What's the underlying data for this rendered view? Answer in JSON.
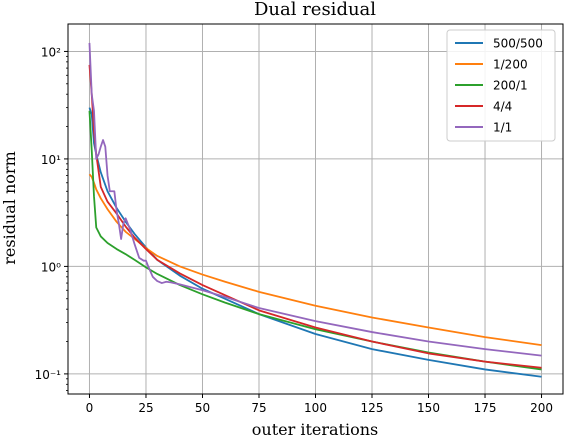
{
  "chart_data": {
    "type": "line",
    "title": "Dual residual",
    "xlabel": "outer iterations",
    "ylabel": "residual norm",
    "xlim": [
      -9.5,
      209.5
    ],
    "ylim": [
      0.065,
      180
    ],
    "yscale": "log",
    "grid": true,
    "legend_position": "top-right",
    "xticks": [
      0,
      25,
      50,
      75,
      100,
      125,
      150,
      175,
      200
    ],
    "yticks": [
      {
        "value": 100,
        "label": "10²"
      },
      {
        "value": 10,
        "label": "10¹"
      },
      {
        "value": 1,
        "label": "10⁰"
      },
      {
        "value": 0.1,
        "label": "10⁻¹"
      }
    ],
    "series": [
      {
        "name": "500/500",
        "color": "#1f77b4",
        "points": [
          [
            0,
            30
          ],
          [
            1,
            26
          ],
          [
            2,
            14
          ],
          [
            3,
            11
          ],
          [
            5,
            7.5
          ],
          [
            8,
            5
          ],
          [
            12,
            3.5
          ],
          [
            16,
            2.6
          ],
          [
            20,
            2
          ],
          [
            25,
            1.5
          ],
          [
            30,
            1.15
          ],
          [
            40,
            0.82
          ],
          [
            50,
            0.62
          ],
          [
            60,
            0.5
          ],
          [
            75,
            0.36
          ],
          [
            100,
            0.235
          ],
          [
            125,
            0.17
          ],
          [
            150,
            0.135
          ],
          [
            175,
            0.11
          ],
          [
            200,
            0.094
          ]
        ]
      },
      {
        "name": "1/200",
        "color": "#ff7f0e",
        "points": [
          [
            0,
            7.2
          ],
          [
            1,
            6.8
          ],
          [
            2,
            6
          ],
          [
            3,
            5.2
          ],
          [
            5,
            4.3
          ],
          [
            8,
            3.4
          ],
          [
            12,
            2.6
          ],
          [
            16,
            2.1
          ],
          [
            20,
            1.8
          ],
          [
            25,
            1.48
          ],
          [
            30,
            1.25
          ],
          [
            40,
            1.0
          ],
          [
            50,
            0.84
          ],
          [
            60,
            0.72
          ],
          [
            75,
            0.58
          ],
          [
            100,
            0.43
          ],
          [
            125,
            0.335
          ],
          [
            150,
            0.27
          ],
          [
            175,
            0.22
          ],
          [
            200,
            0.185
          ]
        ]
      },
      {
        "name": "200/1",
        "color": "#2ca02c",
        "points": [
          [
            0,
            28
          ],
          [
            1,
            12
          ],
          [
            2,
            4.5
          ],
          [
            3,
            2.3
          ],
          [
            5,
            1.9
          ],
          [
            8,
            1.65
          ],
          [
            12,
            1.45
          ],
          [
            16,
            1.3
          ],
          [
            20,
            1.15
          ],
          [
            25,
            0.98
          ],
          [
            30,
            0.85
          ],
          [
            40,
            0.67
          ],
          [
            50,
            0.55
          ],
          [
            60,
            0.46
          ],
          [
            75,
            0.36
          ],
          [
            100,
            0.26
          ],
          [
            125,
            0.2
          ],
          [
            150,
            0.158
          ],
          [
            175,
            0.13
          ],
          [
            200,
            0.11
          ]
        ]
      },
      {
        "name": "4/4",
        "color": "#d62728",
        "points": [
          [
            0,
            75
          ],
          [
            1,
            40
          ],
          [
            2,
            18
          ],
          [
            3,
            11
          ],
          [
            5,
            5.5
          ],
          [
            8,
            4
          ],
          [
            12,
            3.1
          ],
          [
            16,
            2.35
          ],
          [
            20,
            1.85
          ],
          [
            25,
            1.45
          ],
          [
            30,
            1.15
          ],
          [
            40,
            0.86
          ],
          [
            50,
            0.67
          ],
          [
            60,
            0.54
          ],
          [
            75,
            0.39
          ],
          [
            100,
            0.27
          ],
          [
            125,
            0.2
          ],
          [
            150,
            0.155
          ],
          [
            175,
            0.13
          ],
          [
            200,
            0.114
          ]
        ]
      },
      {
        "name": "1/1",
        "color": "#9467bd",
        "points": [
          [
            0,
            120
          ],
          [
            1,
            40
          ],
          [
            2,
            28
          ],
          [
            3,
            10
          ],
          [
            4,
            11
          ],
          [
            5,
            13
          ],
          [
            6,
            15
          ],
          [
            7,
            13
          ],
          [
            8,
            7
          ],
          [
            9,
            5
          ],
          [
            11,
            5
          ],
          [
            12,
            3.3
          ],
          [
            13,
            2.5
          ],
          [
            14,
            1.8
          ],
          [
            15,
            2.5
          ],
          [
            16,
            2.8
          ],
          [
            18,
            2.2
          ],
          [
            20,
            1.6
          ],
          [
            22,
            1.2
          ],
          [
            24,
            1.13
          ],
          [
            25,
            1.13
          ],
          [
            26,
            1.0
          ],
          [
            28,
            0.8
          ],
          [
            30,
            0.73
          ],
          [
            32,
            0.7
          ],
          [
            34,
            0.72
          ],
          [
            36,
            0.71
          ],
          [
            40,
            0.68
          ],
          [
            50,
            0.6
          ],
          [
            60,
            0.52
          ],
          [
            75,
            0.41
          ],
          [
            100,
            0.31
          ],
          [
            125,
            0.245
          ],
          [
            150,
            0.2
          ],
          [
            175,
            0.17
          ],
          [
            200,
            0.148
          ]
        ]
      }
    ]
  }
}
